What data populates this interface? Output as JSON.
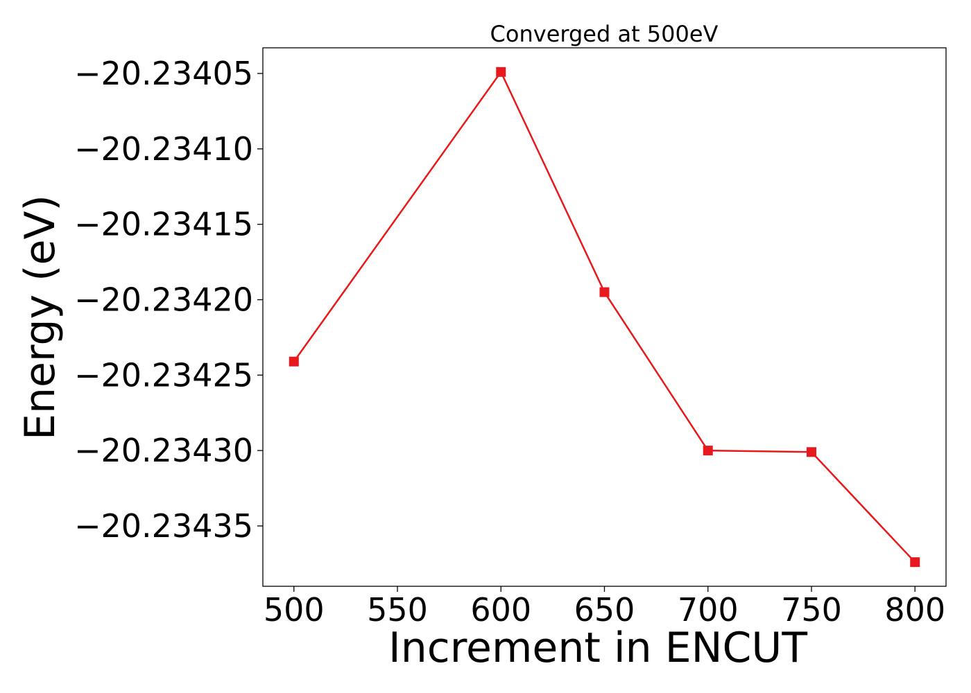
{
  "chart_data": {
    "type": "line",
    "title": "Converged at 500eV",
    "xlabel": "Increment in ENCUT",
    "ylabel": "Energy (eV)",
    "x": [
      500,
      600,
      650,
      700,
      750,
      800
    ],
    "series": [
      {
        "values": [
          -20.234241,
          -20.234049,
          -20.234195,
          -20.2343,
          -20.234301,
          -20.234374
        ],
        "color": "#e8191c",
        "marker": "square"
      }
    ],
    "xticks": [
      500,
      550,
      600,
      650,
      700,
      750,
      800
    ],
    "xtick_labels": [
      "500",
      "550",
      "600",
      "650",
      "700",
      "750",
      "800"
    ],
    "yticks": [
      -20.23405,
      -20.2341,
      -20.23415,
      -20.2342,
      -20.23425,
      -20.2343,
      -20.23435
    ],
    "ytick_labels": [
      "−20.23405",
      "−20.23410",
      "−20.23415",
      "−20.23420",
      "−20.23425",
      "−20.23430",
      "−20.23435"
    ],
    "xlim": [
      485,
      815
    ],
    "ylim": [
      -20.23439,
      -20.234033
    ],
    "grid": false,
    "legend": "none"
  }
}
